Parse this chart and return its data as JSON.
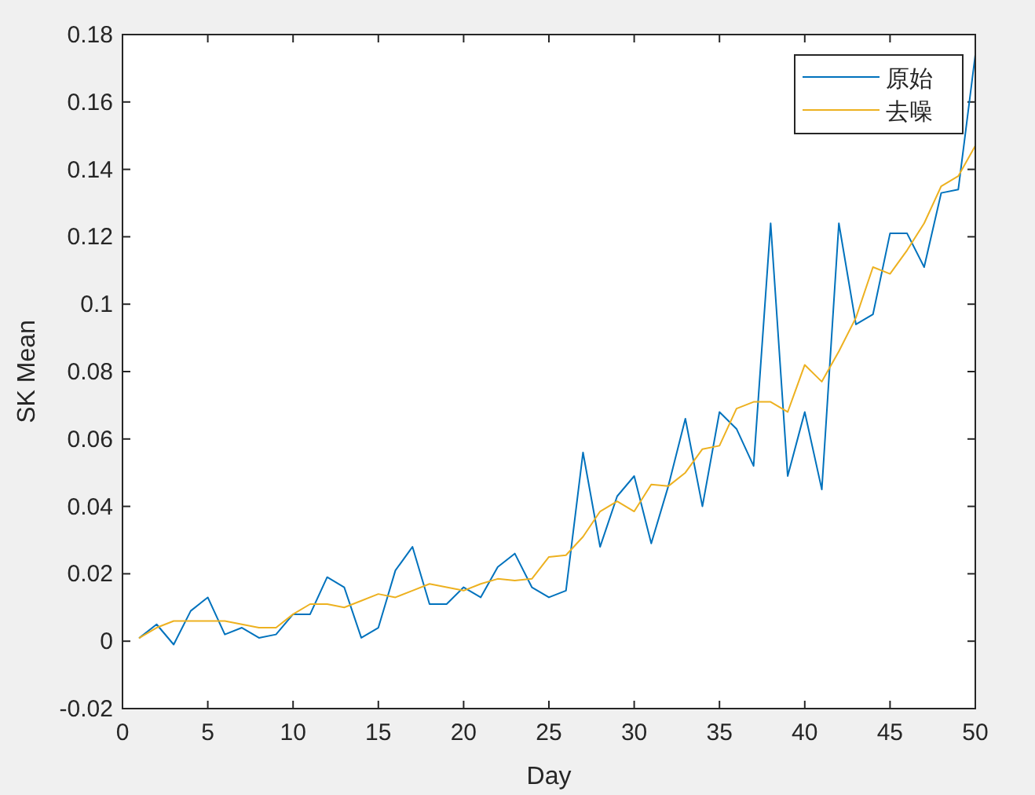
{
  "chart_data": {
    "type": "line",
    "xlabel": "Day",
    "ylabel": "SK Mean",
    "x": [
      1,
      2,
      3,
      4,
      5,
      6,
      7,
      8,
      9,
      10,
      11,
      12,
      13,
      14,
      15,
      16,
      17,
      18,
      19,
      20,
      21,
      22,
      23,
      24,
      25,
      26,
      27,
      28,
      29,
      30,
      31,
      32,
      33,
      34,
      35,
      36,
      37,
      38,
      39,
      40,
      41,
      42,
      43,
      44,
      45,
      46,
      47,
      48,
      49,
      50
    ],
    "series": [
      {
        "name": "原始",
        "color": "#0072bd",
        "values": [
          0.001,
          0.005,
          -0.001,
          0.009,
          0.013,
          0.002,
          0.004,
          0.001,
          0.002,
          0.008,
          0.008,
          0.019,
          0.016,
          0.001,
          0.004,
          0.021,
          0.028,
          0.011,
          0.011,
          0.016,
          0.013,
          0.022,
          0.026,
          0.016,
          0.013,
          0.015,
          0.056,
          0.028,
          0.043,
          0.049,
          0.029,
          0.046,
          0.066,
          0.04,
          0.068,
          0.063,
          0.052,
          0.124,
          0.049,
          0.068,
          0.045,
          0.124,
          0.094,
          0.097,
          0.121,
          0.121,
          0.111,
          0.133,
          0.134,
          0.174
        ]
      },
      {
        "name": "去噪",
        "color": "#edb120",
        "values": [
          0.001,
          0.004,
          0.006,
          0.006,
          0.006,
          0.006,
          0.005,
          0.004,
          0.004,
          0.008,
          0.011,
          0.011,
          0.01,
          0.012,
          0.014,
          0.013,
          0.015,
          0.017,
          0.016,
          0.015,
          0.017,
          0.0185,
          0.018,
          0.0185,
          0.025,
          0.0255,
          0.031,
          0.0385,
          0.0415,
          0.0385,
          0.0465,
          0.046,
          0.05,
          0.057,
          0.058,
          0.069,
          0.071,
          0.071,
          0.068,
          0.082,
          0.077,
          0.086,
          0.096,
          0.111,
          0.109,
          0.116,
          0.124,
          0.135,
          0.138,
          0.147
        ]
      }
    ],
    "xlim": [
      0,
      50
    ],
    "xticks": [
      0,
      5,
      10,
      15,
      20,
      25,
      30,
      35,
      40,
      45,
      50
    ],
    "ylim": [
      -0.02,
      0.18
    ],
    "yticks": [
      -0.02,
      0,
      0.02,
      0.04,
      0.06,
      0.08,
      0.1,
      0.12,
      0.14,
      0.16,
      0.18
    ],
    "legend": "top right",
    "grid": false,
    "line_style": "solid"
  }
}
